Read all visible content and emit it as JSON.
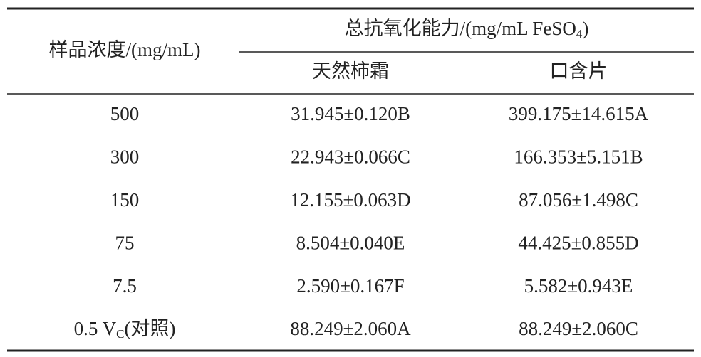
{
  "table": {
    "row_header": "样品浓度/(mg/mL)",
    "group_header": {
      "text": "总抗氧化能力/(mg/mL FeSO",
      "sub": "4",
      "tail": ")"
    },
    "sub_headers": [
      "天然柿霜",
      "口含片"
    ],
    "rows": [
      [
        "500",
        "31.945±0.120B",
        "399.175±14.615A"
      ],
      [
        "300",
        "22.943±0.066C",
        "166.353±5.151B"
      ],
      [
        "150",
        "12.155±0.063D",
        "87.056±1.498C"
      ],
      [
        "75",
        "8.504±0.040E",
        "44.425±0.855D"
      ],
      [
        "7.5",
        "2.590±0.167F",
        "5.582±0.943E"
      ],
      [
        {
          "text": "0.5 V",
          "sub": "C",
          "tail": "(对照)"
        },
        "88.249±2.060A",
        "88.249±2.060C"
      ]
    ]
  }
}
